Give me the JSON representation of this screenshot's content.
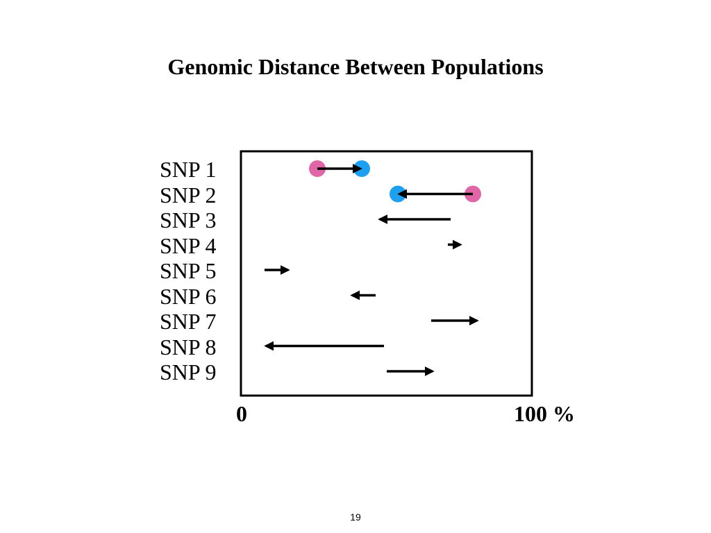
{
  "colors": {
    "pink": "#e066a7",
    "blue": "#1ea0f0",
    "arrow": "#000000",
    "frame": "#000000"
  },
  "chart_data": {
    "type": "arrow-range",
    "title": "Genomic Distance Between Populations",
    "xlim": [
      0,
      100
    ],
    "x_tick_labels": [
      "0",
      "100 %"
    ],
    "categories": [
      "SNP 1",
      "SNP 2",
      "SNP 3",
      "SNP 4",
      "SNP 5",
      "SNP 6",
      "SNP 7",
      "SNP 8",
      "SNP 9"
    ],
    "arrows": [
      {
        "snp": "SNP 1",
        "from": 20,
        "to": 36,
        "start_dot": "pink",
        "end_dot": "blue"
      },
      {
        "snp": "SNP 2",
        "from": 76,
        "to": 49,
        "start_dot": "pink",
        "end_dot": "blue"
      },
      {
        "snp": "SNP 3",
        "from": 68,
        "to": 42,
        "start_dot": null,
        "end_dot": null
      },
      {
        "snp": "SNP 4",
        "from": 67,
        "to": 72,
        "start_dot": null,
        "end_dot": null
      },
      {
        "snp": "SNP 5",
        "from": 1,
        "to": 10,
        "start_dot": null,
        "end_dot": null
      },
      {
        "snp": "SNP 6",
        "from": 41,
        "to": 32,
        "start_dot": null,
        "end_dot": null
      },
      {
        "snp": "SNP 7",
        "from": 61,
        "to": 78,
        "start_dot": null,
        "end_dot": null
      },
      {
        "snp": "SNP 8",
        "from": 44,
        "to": 1,
        "start_dot": null,
        "end_dot": null
      },
      {
        "snp": "SNP 9",
        "from": 45,
        "to": 62,
        "start_dot": null,
        "end_dot": null
      }
    ]
  },
  "footer": {
    "page_number": "19"
  }
}
